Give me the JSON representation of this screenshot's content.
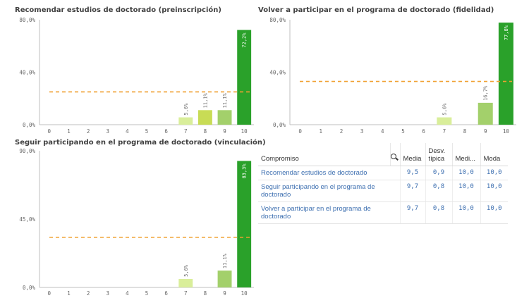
{
  "charts": {
    "c1": {
      "title": "Recomendar estudios de doctorado (preinscripción)"
    },
    "c2": {
      "title": "Volver a participar en el programa de doctorado (fidelidad)"
    },
    "c3": {
      "title": "Seguir participando en el programa de doctorado (vinculación)"
    }
  },
  "chart_data": [
    {
      "type": "bar",
      "title": "Recomendar estudios de doctorado (preinscripción)",
      "categories": [
        "0",
        "1",
        "2",
        "3",
        "4",
        "5",
        "6",
        "7",
        "8",
        "9",
        "10"
      ],
      "values": [
        0,
        0,
        0,
        0,
        0,
        0,
        0,
        5.6,
        11.1,
        11.1,
        72.2
      ],
      "value_labels": [
        "",
        "",
        "",
        "",
        "",
        "",
        "",
        "5,6%",
        "11,1%",
        "11,1%",
        "72,2%"
      ],
      "y_ticks": [
        "0,0%",
        "40,0%",
        "80,0%"
      ],
      "ylim": [
        0,
        80
      ],
      "reference_line": 25,
      "colors": [
        "#d9ee9a",
        "#d9ee9a",
        "#d9ee9a",
        "#d9ee9a",
        "#d9ee9a",
        "#d9ee9a",
        "#d9ee9a",
        "#d9ee9a",
        "#c8dc55",
        "#a3d06b",
        "#2aa12a"
      ]
    },
    {
      "type": "bar",
      "title": "Volver a participar en el programa de doctorado (fidelidad)",
      "categories": [
        "0",
        "1",
        "2",
        "3",
        "4",
        "5",
        "6",
        "7",
        "8",
        "9",
        "10"
      ],
      "values": [
        0,
        0,
        0,
        0,
        0,
        0,
        0,
        5.6,
        0,
        16.7,
        77.8
      ],
      "value_labels": [
        "",
        "",
        "",
        "",
        "",
        "",
        "",
        "5,6%",
        "",
        "16,7%",
        "77,8%"
      ],
      "y_ticks": [
        "0,0%",
        "40,0%",
        "80,0%"
      ],
      "ylim": [
        0,
        80
      ],
      "reference_line": 33,
      "colors": [
        "#d9ee9a",
        "#d9ee9a",
        "#d9ee9a",
        "#d9ee9a",
        "#d9ee9a",
        "#d9ee9a",
        "#d9ee9a",
        "#d9ee9a",
        "#c8dc55",
        "#a3d06b",
        "#2aa12a"
      ]
    },
    {
      "type": "bar",
      "title": "Seguir participando en el programa de doctorado (vinculación)",
      "categories": [
        "0",
        "1",
        "2",
        "3",
        "4",
        "5",
        "6",
        "7",
        "8",
        "9",
        "10"
      ],
      "values": [
        0,
        0,
        0,
        0,
        0,
        0,
        0,
        5.6,
        0,
        11.1,
        83.3
      ],
      "value_labels": [
        "",
        "",
        "",
        "",
        "",
        "",
        "",
        "5,6%",
        "",
        "11,1%",
        "83,3%"
      ],
      "y_ticks": [
        "0,0%",
        "45,0%",
        "90,0%"
      ],
      "ylim": [
        0,
        90
      ],
      "reference_line": 33,
      "colors": [
        "#d9ee9a",
        "#d9ee9a",
        "#d9ee9a",
        "#d9ee9a",
        "#d9ee9a",
        "#d9ee9a",
        "#d9ee9a",
        "#d9ee9a",
        "#c8dc55",
        "#a3d06b",
        "#2aa12a"
      ]
    }
  ],
  "table": {
    "headers": {
      "compromiso": "Compromiso",
      "media": "Media",
      "desv": "Desv. típica",
      "mediana": "Medi...",
      "moda": "Moda"
    },
    "search_icon": "search-icon",
    "rows": [
      {
        "name": "Recomendar estudios de doctorado",
        "media": "9,5",
        "desv": "0,9",
        "mediana": "10,0",
        "moda": "10,0"
      },
      {
        "name": "Seguir participando en el programa de doctorado",
        "media": "9,7",
        "desv": "0,8",
        "mediana": "10,0",
        "moda": "10,0"
      },
      {
        "name": "Volver a participar en el programa de doctorado",
        "media": "9,7",
        "desv": "0,8",
        "mediana": "10,0",
        "moda": "10,0"
      }
    ],
    "link_color": "#3d6fb0"
  }
}
